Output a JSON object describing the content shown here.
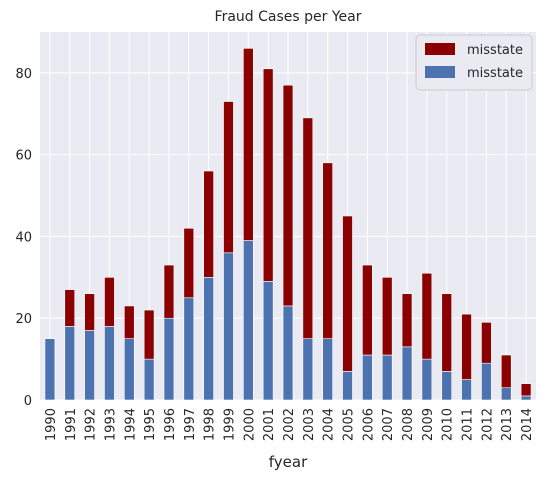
{
  "chart_data": {
    "type": "bar",
    "stacked": true,
    "title": "Fraud Cases per Year",
    "xlabel": "fyear",
    "ylabel": "",
    "ylim": [
      0,
      90
    ],
    "yticks": [
      0,
      20,
      40,
      60,
      80
    ],
    "grid": true,
    "legend_placement": "top-right",
    "categories": [
      "1990",
      "1991",
      "1992",
      "1993",
      "1994",
      "1995",
      "1996",
      "1997",
      "1998",
      "1999",
      "2000",
      "2001",
      "2002",
      "2003",
      "2004",
      "2005",
      "2006",
      "2007",
      "2008",
      "2009",
      "2010",
      "2011",
      "2012",
      "2013",
      "2014"
    ],
    "series": [
      {
        "name": "misstate",
        "color": "#4c72b0",
        "values": [
          15,
          18,
          17,
          18,
          15,
          10,
          20,
          25,
          30,
          36,
          39,
          29,
          23,
          15,
          15,
          7,
          11,
          11,
          13,
          10,
          7,
          5,
          9,
          3,
          1
        ]
      },
      {
        "name": "misstate",
        "color": "#8b0000",
        "values": [
          0,
          9,
          9,
          12,
          8,
          12,
          13,
          17,
          26,
          37,
          47,
          52,
          54,
          54,
          43,
          38,
          22,
          19,
          13,
          21,
          19,
          16,
          10,
          8,
          3
        ]
      }
    ],
    "legend": [
      {
        "label": "misstate",
        "color": "#8b0000"
      },
      {
        "label": "misstate",
        "color": "#4c72b0"
      }
    ]
  },
  "colors": {
    "plot_background": "#eaeaf2",
    "grid": "#ffffff",
    "text": "#262626"
  }
}
